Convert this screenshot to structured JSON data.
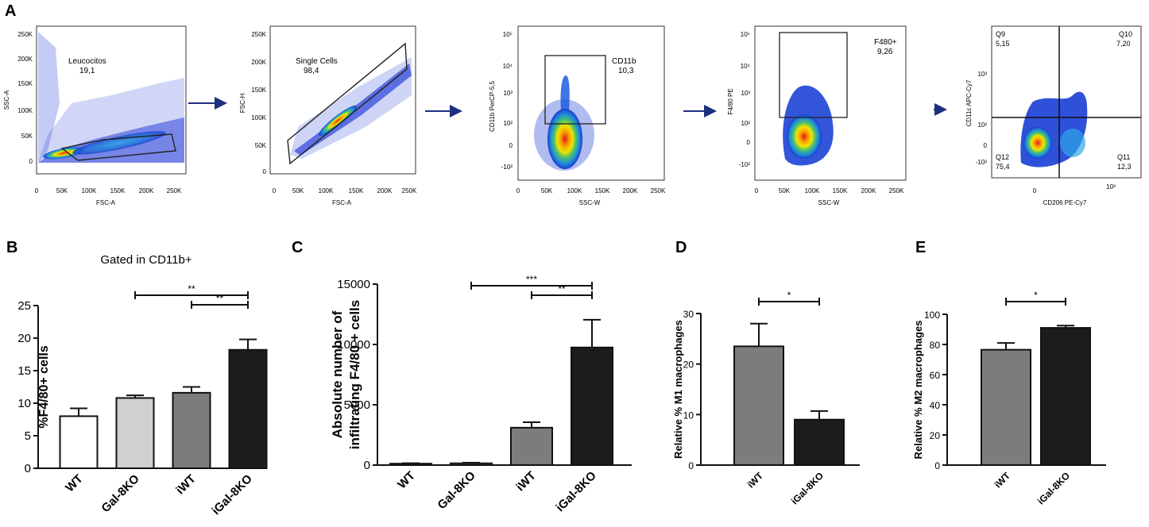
{
  "panel_labels": [
    "A",
    "B",
    "C",
    "D",
    "E"
  ],
  "flow_panels": [
    {
      "y_label": "SSC-A",
      "x_label": "FSC-A",
      "y_ticks": [
        "250K",
        "200K",
        "150K",
        "100K",
        "50K",
        "0"
      ],
      "x_ticks": [
        "0",
        "50K",
        "100K",
        "150K",
        "200K",
        "250K"
      ],
      "gate_name": "Leucocitos",
      "gate_value": "19,1"
    },
    {
      "y_label": "FSC-H",
      "x_label": "FSC-A",
      "y_ticks": [
        "250K",
        "200K",
        "150K",
        "100K",
        "50K",
        "0"
      ],
      "x_ticks": [
        "0",
        "50K",
        "100K",
        "150K",
        "200K",
        "250K"
      ],
      "gate_name": "Single Cells",
      "gate_value": "98,4"
    },
    {
      "y_label": "CD11b PerCP-5,5",
      "x_label": "SSC-W",
      "y_ticks": [
        "10⁵",
        "10⁴",
        "10³",
        "10²",
        "0",
        "-10²"
      ],
      "x_ticks": [
        "0",
        "50K",
        "100K",
        "150K",
        "200K",
        "250K"
      ],
      "gate_name": "CD11b",
      "gate_value": "10,3"
    },
    {
      "y_label": "F4/80 PE",
      "x_label": "SSC-W",
      "y_ticks": [
        "10⁵",
        "10⁴",
        "10³",
        "10²",
        "0",
        "-10²"
      ],
      "x_ticks": [
        "0",
        "50K",
        "100K",
        "150K",
        "200K",
        "250K"
      ],
      "gate_name": "F480+",
      "gate_value": "9,26"
    },
    {
      "y_label": "CD11c APC-Cy7",
      "x_label": "CD206 PE-Cy7",
      "y_ticks": [
        "10³",
        "10²",
        "0",
        "-10²"
      ],
      "x_ticks": [
        "0",
        "10³"
      ],
      "quadrants": [
        {
          "name": "Q9",
          "value": "5,15"
        },
        {
          "name": "Q10",
          "value": "7,20"
        },
        {
          "name": "Q12",
          "value": "75,4"
        },
        {
          "name": "Q11",
          "value": "12,3"
        }
      ]
    }
  ],
  "chart_data": [
    {
      "type": "bar",
      "panel": "B",
      "title": "Gated in CD11b+",
      "xlabel": "",
      "ylabel": "%F4/80+ cells",
      "categories": [
        "WT",
        "Gal-8KO",
        "iWT",
        "iGal-8KO"
      ],
      "values": [
        8.0,
        10.8,
        11.6,
        18.2
      ],
      "errors": [
        1.2,
        0.4,
        0.9,
        1.6
      ],
      "bar_colors": [
        "#ffffff",
        "#d0d0d0",
        "#7c7c7c",
        "#1c1c1c"
      ],
      "ylim": [
        0,
        25
      ],
      "yticks": [
        "0",
        "5",
        "10",
        "15",
        "20",
        "25"
      ],
      "significance": [
        {
          "from": 1,
          "to": 3,
          "label": "**"
        },
        {
          "from": 2,
          "to": 3,
          "label": "**"
        }
      ]
    },
    {
      "type": "bar",
      "panel": "C",
      "title": "",
      "xlabel": "",
      "ylabel": "Absolute number of infiltrating F4/80 + cells",
      "ylabel_lines": [
        "Absolute number of",
        "infiltrating F4/80 + cells"
      ],
      "categories": [
        "WT",
        "Gal-8KO",
        "iWT",
        "iGal-8KO"
      ],
      "values": [
        120,
        150,
        3100,
        9750
      ],
      "errors": [
        40,
        50,
        450,
        2300
      ],
      "bar_colors": [
        "#7c7c7c",
        "#7c7c7c",
        "#7c7c7c",
        "#1c1c1c"
      ],
      "ylim": [
        0,
        15000
      ],
      "yticks": [
        "0",
        "5000",
        "10000",
        "15000"
      ],
      "significance": [
        {
          "from": 1,
          "to": 3,
          "label": "***"
        },
        {
          "from": 2,
          "to": 3,
          "label": "**"
        }
      ]
    },
    {
      "type": "bar",
      "panel": "D",
      "title": "",
      "xlabel": "",
      "ylabel": "Relative % M1 macrophages",
      "categories": [
        "iWT",
        "iGal-8KO"
      ],
      "values": [
        23.5,
        9.0
      ],
      "errors": [
        4.5,
        1.7
      ],
      "bar_colors": [
        "#7c7c7c",
        "#1c1c1c"
      ],
      "ylim": [
        0,
        30
      ],
      "yticks": [
        "0",
        "10",
        "20",
        "30"
      ],
      "significance": [
        {
          "from": 0,
          "to": 1,
          "label": "*"
        }
      ]
    },
    {
      "type": "bar",
      "panel": "E",
      "title": "",
      "xlabel": "",
      "ylabel": "Relative % M2 macrophages",
      "categories": [
        "iWT",
        "iGal-8KO"
      ],
      "values": [
        76.5,
        91.0
      ],
      "errors": [
        4.5,
        1.5
      ],
      "bar_colors": [
        "#7c7c7c",
        "#1c1c1c"
      ],
      "ylim": [
        0,
        100
      ],
      "yticks": [
        "0",
        "20",
        "40",
        "60",
        "80",
        "100"
      ],
      "significance": [
        {
          "from": 0,
          "to": 1,
          "label": "*"
        }
      ]
    }
  ]
}
